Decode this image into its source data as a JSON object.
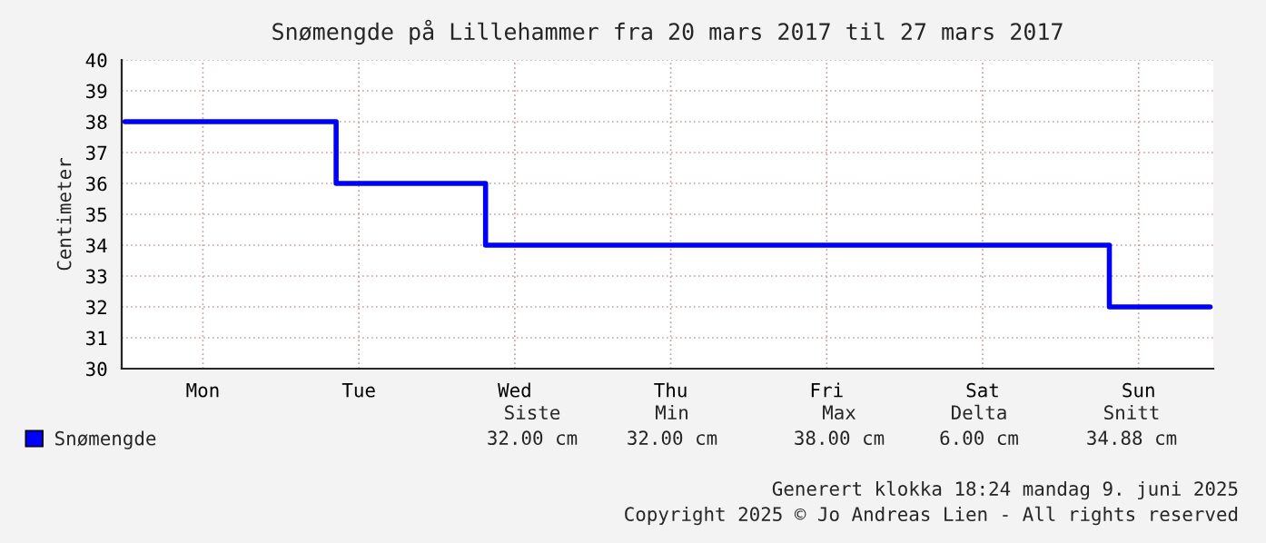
{
  "chart_data": {
    "type": "step",
    "title": "Snømengde på Lillehammer fra 20 mars 2017 til 27 mars 2017",
    "ylabel": "Centimeter",
    "categories": [
      null,
      null,
      null,
      null,
      null,
      null,
      null,
      null,
      null,
      null,
      null,
      null,
      "Mon",
      null,
      null,
      null,
      null,
      null,
      null,
      null,
      null,
      null,
      null,
      null,
      null,
      null,
      null,
      null,
      null,
      null,
      null,
      null,
      null,
      null,
      null,
      null,
      "Tue",
      null,
      null,
      null,
      null,
      null,
      null,
      null,
      null,
      null,
      null,
      null,
      null,
      null,
      null,
      null,
      null,
      null,
      null,
      null,
      null,
      null,
      null,
      null,
      "Wed",
      null,
      null,
      null,
      null,
      null,
      null,
      null,
      null,
      null,
      null,
      null,
      null,
      null,
      null,
      null,
      null,
      null,
      null,
      null,
      null,
      null,
      null,
      null,
      "Thu",
      null,
      null,
      null,
      null,
      null,
      null,
      null,
      null,
      null,
      null,
      null,
      null,
      null,
      null,
      null,
      null,
      null,
      null,
      null,
      null,
      null,
      null,
      null,
      "Fri",
      null,
      null,
      null,
      null,
      null,
      null,
      null,
      null,
      null,
      null,
      null,
      null,
      null,
      null,
      null,
      null,
      null,
      null,
      null,
      null,
      null,
      null,
      null,
      "Sat",
      null,
      null,
      null,
      null,
      null,
      null,
      null,
      null,
      null,
      null,
      null,
      null,
      null,
      null,
      null,
      null,
      null,
      null,
      null,
      null,
      null,
      null,
      null,
      "Sun",
      null,
      null,
      null,
      null,
      null,
      null,
      null,
      null,
      null,
      null,
      null
    ],
    "series": [
      {
        "name": "Snømengde",
        "color": "#0000ff",
        "values": [
          38,
          38,
          38,
          38,
          38,
          38,
          38,
          38,
          38,
          38,
          38,
          38,
          38,
          38,
          38,
          38,
          38,
          38,
          38,
          38,
          38,
          38,
          38,
          38,
          38,
          38,
          38,
          38,
          38,
          38,
          38,
          38,
          38,
          36,
          36,
          36,
          36,
          36,
          36,
          36,
          36,
          36,
          36,
          36,
          36,
          36,
          36,
          36,
          36,
          36,
          36,
          36,
          36,
          36,
          36,
          36,
          34,
          34,
          34,
          34,
          34,
          34,
          34,
          34,
          34,
          34,
          34,
          34,
          34,
          34,
          34,
          34,
          34,
          34,
          34,
          34,
          34,
          34,
          34,
          34,
          34,
          34,
          34,
          34,
          34,
          34,
          34,
          34,
          34,
          34,
          34,
          34,
          34,
          34,
          34,
          34,
          34,
          34,
          34,
          34,
          34,
          34,
          34,
          34,
          34,
          34,
          34,
          34,
          34,
          34,
          34,
          34,
          34,
          34,
          34,
          34,
          34,
          34,
          34,
          34,
          34,
          34,
          34,
          34,
          34,
          34,
          34,
          34,
          34,
          34,
          34,
          34,
          34,
          34,
          34,
          34,
          34,
          34,
          34,
          34,
          34,
          34,
          34,
          34,
          34,
          34,
          34,
          34,
          34,
          34,
          34,
          34,
          32,
          32,
          32,
          32,
          32,
          32,
          32,
          32,
          32,
          32,
          32,
          32,
          32,
          32,
          32,
          32
        ]
      }
    ],
    "ylim": [
      30,
      40
    ],
    "yticks": [
      30,
      31,
      32,
      33,
      34,
      35,
      36,
      37,
      38,
      39,
      40
    ],
    "grid": true,
    "legend": "bottom left",
    "line_style": "solid",
    "marker": "none",
    "annotations": [
      "Siste",
      "Min",
      "Max",
      "Delta",
      "Snitt",
      "32.00 cm",
      "32.00 cm",
      "38.00 cm",
      "6.00 cm",
      "34.88 cm",
      "Generert klokka 18:24 mandag 9. juni 2025",
      "Copyright 2025 © Jo Andreas Lien - All rights reserved"
    ]
  }
}
